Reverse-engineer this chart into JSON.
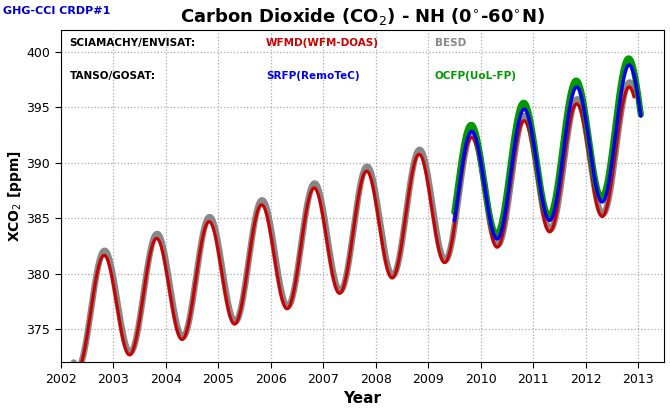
{
  "title": "Carbon Dioxide (CO$_2$) - NH (0$^\\circ$-60$^\\circ$N)",
  "subtitle": "GHG-CCI CRDP#1",
  "xlabel": "Year",
  "ylabel": "XCO$_2$ [ppm]",
  "ylim": [
    372,
    402
  ],
  "yticks": [
    375,
    380,
    385,
    390,
    395,
    400
  ],
  "xlim": [
    2002.0,
    2013.5
  ],
  "xticks": [
    2002,
    2003,
    2004,
    2005,
    2006,
    2007,
    2008,
    2009,
    2010,
    2011,
    2012,
    2013
  ],
  "background_color": "#ffffff",
  "plot_bg_color": "#ffffff",
  "grid_color": "#aaaaaa",
  "title_color": "#000000",
  "subtitle_color": "#0000cc",
  "wfmd_color": "#cc0000",
  "besd_color": "#888888",
  "srfp_color": "#0000ee",
  "ocfp_color": "#009900",
  "wfmd_lw": 2.2,
  "besd_lw": 4.5,
  "srfp_lw": 2.5,
  "ocfp_lw": 4.5,
  "wfmd_zorder": 4,
  "besd_zorder": 3,
  "srfp_zorder": 6,
  "ocfp_zorder": 5,
  "envisat_start": 2002.25,
  "envisat_end": 2012.92,
  "gosat_start": 2009.5,
  "gosat_end": 2013.05
}
